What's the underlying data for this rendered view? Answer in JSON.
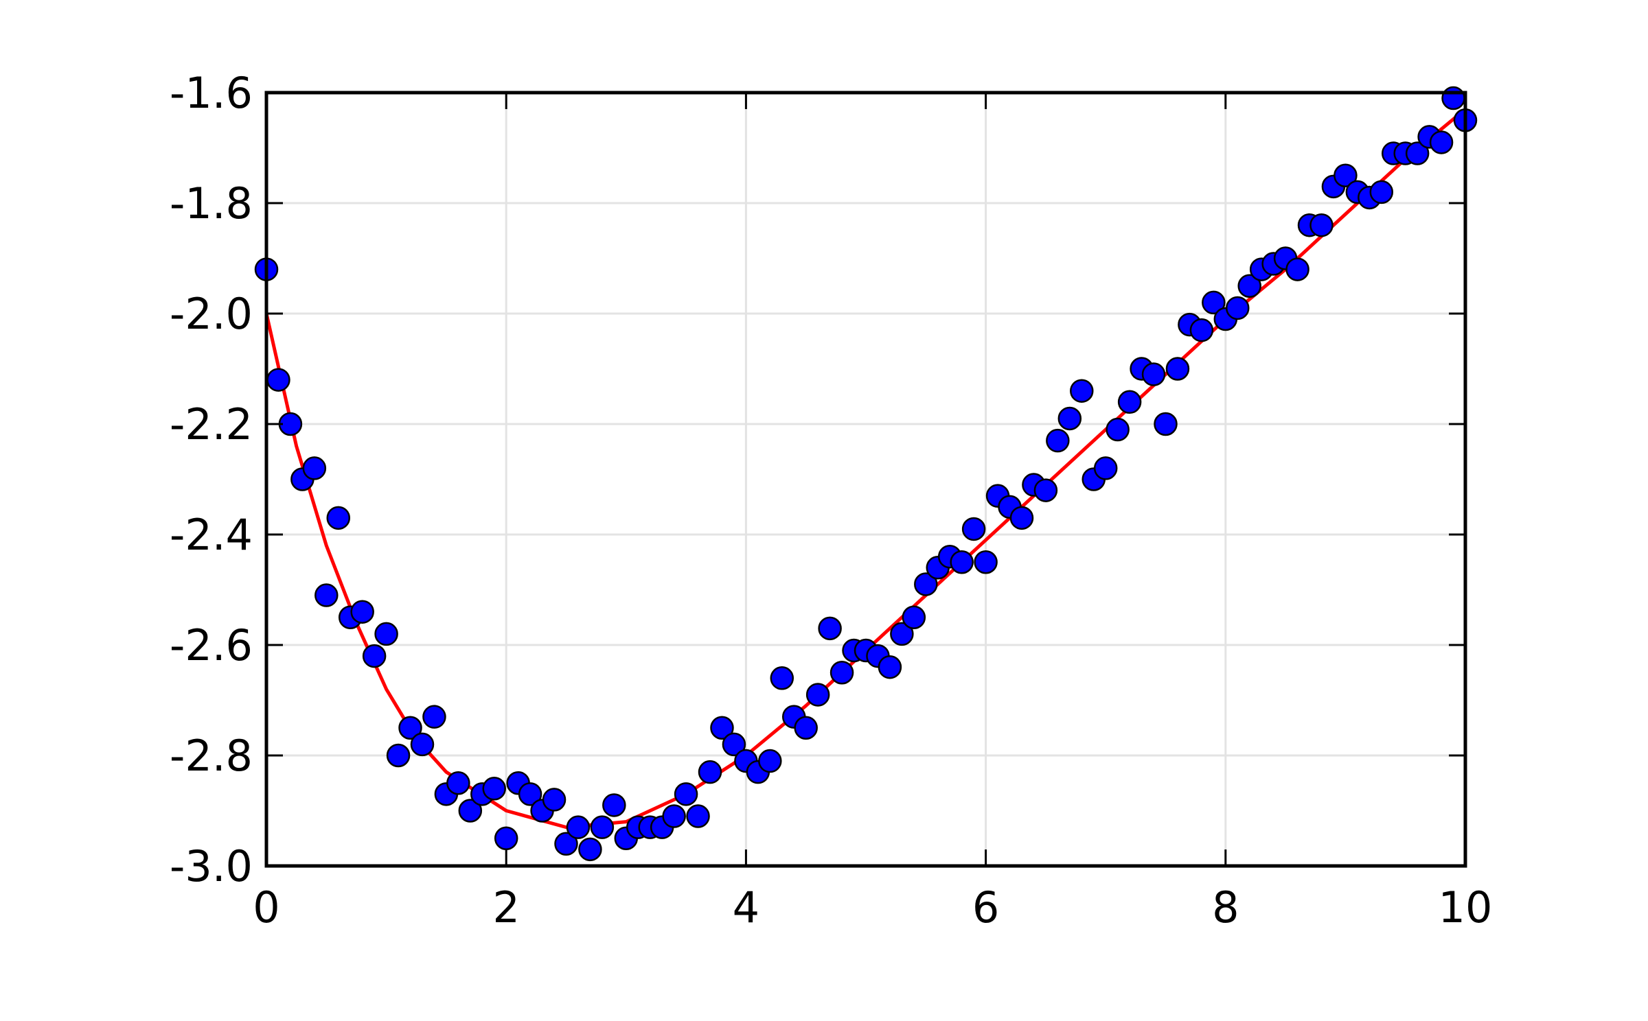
{
  "chart_data": {
    "type": "scatter",
    "xlim": [
      0,
      10
    ],
    "xticks": [
      0,
      2,
      4,
      6,
      8,
      10
    ],
    "ylim": [
      -3,
      -1.6
    ],
    "yticks": [
      {
        "value": -3,
        "label": "-3.0"
      },
      {
        "value": -2.8,
        "label": "-2.8"
      },
      {
        "value": -2.6,
        "label": "-2.6"
      },
      {
        "value": -2.4,
        "label": "-2.4"
      },
      {
        "value": -2.2,
        "label": "-2.2"
      },
      {
        "value": -2,
        "label": "-2.0"
      },
      {
        "value": -1.8,
        "label": "-1.8"
      },
      {
        "value": -1.6,
        "label": "-1.6"
      }
    ],
    "grid": true,
    "series": [
      {
        "type": "scatter",
        "color": "#0000ff",
        "x": [
          0,
          0.1,
          0.2,
          0.3,
          0.4,
          0.5,
          0.6,
          0.7,
          0.8,
          0.9,
          1,
          1.1,
          1.2,
          1.3,
          1.4,
          1.5,
          1.6,
          1.7,
          1.8,
          1.9,
          2,
          2.1,
          2.2,
          2.3,
          2.4,
          2.5,
          2.6,
          2.7,
          2.8,
          2.9,
          3,
          3.1,
          3.2,
          3.3,
          3.4,
          3.5,
          3.6,
          3.7,
          3.8,
          3.9,
          4,
          4.1,
          4.2,
          4.3,
          4.4,
          4.5,
          4.6,
          4.7,
          4.8,
          4.9,
          5,
          5.1,
          5.2,
          5.3,
          5.4,
          5.5,
          5.6,
          5.7,
          5.8,
          5.9,
          6,
          6.1,
          6.2,
          6.3,
          6.4,
          6.5,
          6.6,
          6.7,
          6.8,
          6.9,
          7,
          7.1,
          7.2,
          7.3,
          7.4,
          7.5,
          7.6,
          7.7,
          7.8,
          7.9,
          8,
          8.1,
          8.2,
          8.3,
          8.4,
          8.5,
          8.6,
          8.7,
          8.8,
          8.9,
          9,
          9.1,
          9.2,
          9.3,
          9.4,
          9.5,
          9.6,
          9.7,
          9.8,
          9.9,
          10
        ],
        "values": [
          -1.92,
          -2.12,
          -2.2,
          -2.3,
          -2.28,
          -2.51,
          -2.37,
          -2.55,
          -2.54,
          -2.62,
          -2.58,
          -2.8,
          -2.75,
          -2.78,
          -2.73,
          -2.87,
          -2.85,
          -2.9,
          -2.87,
          -2.86,
          -2.95,
          -2.85,
          -2.87,
          -2.9,
          -2.88,
          -2.96,
          -2.93,
          -2.97,
          -2.93,
          -2.89,
          -2.95,
          -2.93,
          -2.93,
          -2.93,
          -2.91,
          -2.87,
          -2.91,
          -2.83,
          -2.75,
          -2.78,
          -2.81,
          -2.83,
          -2.81,
          -2.66,
          -2.73,
          -2.75,
          -2.69,
          -2.57,
          -2.65,
          -2.61,
          -2.61,
          -2.62,
          -2.64,
          -2.58,
          -2.55,
          -2.49,
          -2.46,
          -2.44,
          -2.45,
          -2.39,
          -2.45,
          -2.33,
          -2.35,
          -2.37,
          -2.31,
          -2.32,
          -2.23,
          -2.19,
          -2.14,
          -2.3,
          -2.28,
          -2.21,
          -2.16,
          -2.1,
          -2.11,
          -2.2,
          -2.1,
          -2.02,
          -2.03,
          -1.98,
          -2.01,
          -1.99,
          -1.95,
          -1.92,
          -1.91,
          -1.9,
          -1.92,
          -1.84,
          -1.84,
          -1.77,
          -1.75,
          -1.78,
          -1.79,
          -1.78,
          -1.71,
          -1.71,
          -1.71,
          -1.68,
          -1.69,
          -1.61,
          -1.65
        ]
      },
      {
        "type": "line",
        "color": "#ff0000",
        "x": [
          0,
          0.25,
          0.5,
          0.75,
          1,
          1.25,
          1.5,
          2,
          2.5,
          3,
          3.5,
          4,
          4.5,
          5,
          5.5,
          6,
          6.5,
          7,
          7.5,
          8,
          8.5,
          9,
          9.5,
          10
        ],
        "values": [
          -2.0,
          -2.24,
          -2.42,
          -2.56,
          -2.68,
          -2.77,
          -2.83,
          -2.9,
          -2.93,
          -2.92,
          -2.87,
          -2.8,
          -2.71,
          -2.61,
          -2.51,
          -2.41,
          -2.31,
          -2.21,
          -2.11,
          -2.01,
          -1.92,
          -1.82,
          -1.72,
          -1.63
        ]
      }
    ]
  }
}
